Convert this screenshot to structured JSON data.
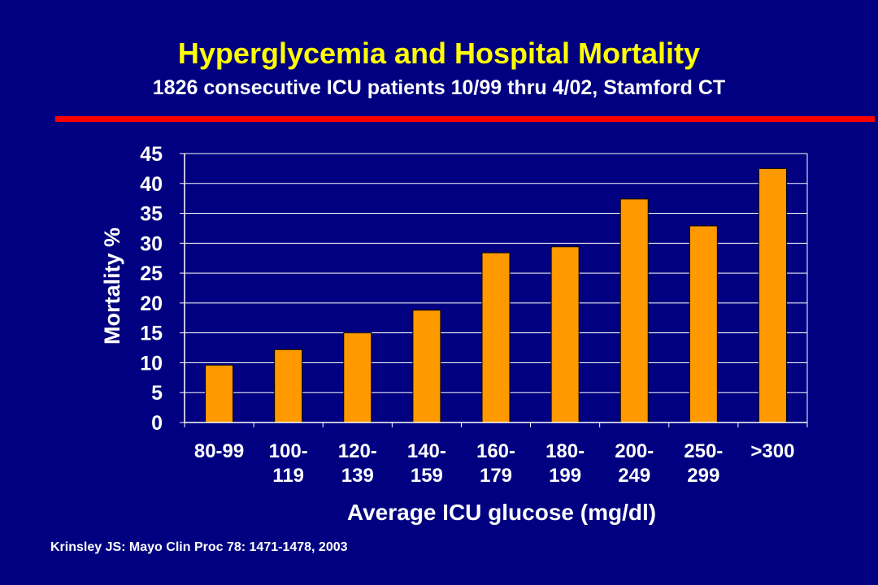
{
  "slide": {
    "title": "Hyperglycemia and Hospital Mortality",
    "subtitle": "1826 consecutive ICU patients 10/99 thru 4/02, Stamford CT",
    "source": "Krinsley JS: Mayo Clin Proc 78: 1471-1478, 2003"
  },
  "colors": {
    "background": "#000080",
    "title": "#FFFF00",
    "text": "#FFFFFF",
    "rule": "#FF0000",
    "bar": "#FF9900",
    "grid": "#FFFFFF"
  },
  "chart_data": {
    "type": "bar",
    "categories": [
      [
        "80-99"
      ],
      [
        "100-",
        "119"
      ],
      [
        "120-",
        "139"
      ],
      [
        "140-",
        "159"
      ],
      [
        "160-",
        "179"
      ],
      [
        "180-",
        "199"
      ],
      [
        "200-",
        "249"
      ],
      [
        "250-",
        "299"
      ],
      [
        ">300"
      ]
    ],
    "values": [
      9.6,
      12.2,
      15.0,
      18.8,
      28.4,
      29.4,
      37.4,
      32.9,
      42.5
    ],
    "xlabel": "Average ICU glucose (mg/dl)",
    "ylabel": "Mortality %",
    "ylim": [
      0,
      45
    ],
    "yticks": [
      0,
      5,
      10,
      15,
      20,
      25,
      30,
      35,
      40,
      45
    ],
    "grid": "horizontal",
    "legend": "none"
  }
}
